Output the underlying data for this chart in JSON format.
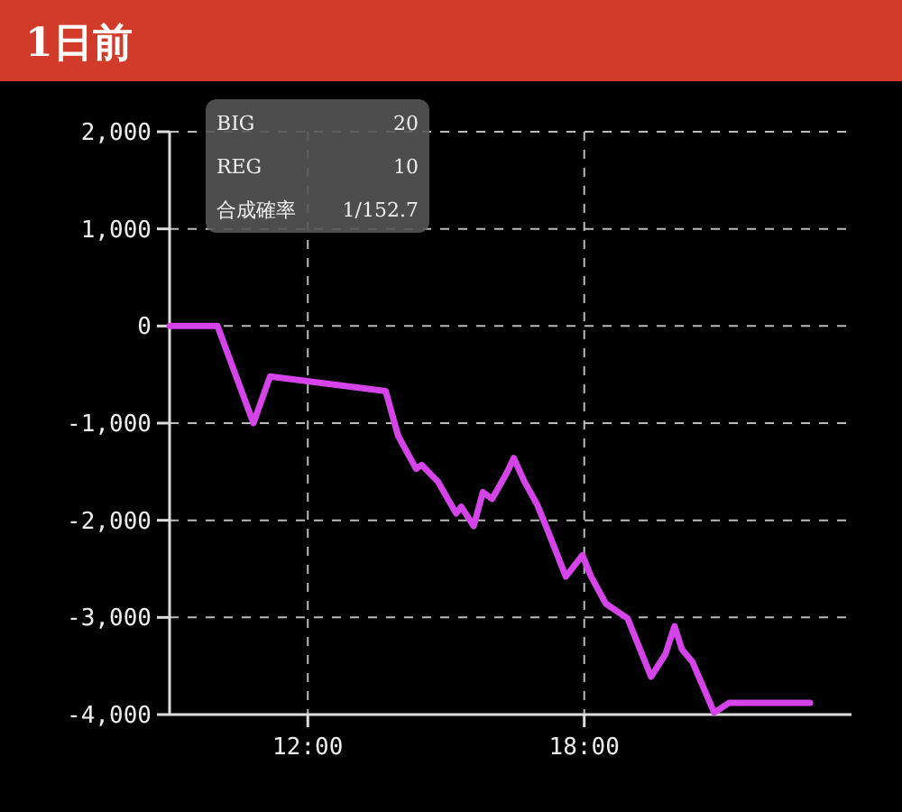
{
  "chart_data": {
    "type": "line",
    "title": "1日前",
    "annotations": [
      "BIG",
      "20",
      "REG",
      "10",
      "合成確率",
      "1/152.7"
    ],
    "x": [
      9.0,
      10.04,
      10.82,
      11.18,
      13.69,
      13.96,
      14.35,
      14.47,
      14.82,
      15.22,
      15.33,
      15.6,
      15.8,
      16.0,
      16.31,
      16.47,
      16.7,
      16.98,
      17.22,
      17.6,
      17.96,
      18.15,
      18.47,
      18.94,
      19.45,
      19.76,
      19.96,
      20.12,
      20.35,
      20.82,
      21.14,
      22.9
    ],
    "series": [
      {
        "color": "#d444e8",
        "values": [
          0,
          0,
          -1000,
          -520,
          -670,
          -1130,
          -1470,
          -1430,
          -1600,
          -1930,
          -1860,
          -2060,
          -1710,
          -1780,
          -1520,
          -1360,
          -1600,
          -1840,
          -2120,
          -2580,
          -2360,
          -2580,
          -2860,
          -3010,
          -3610,
          -3380,
          -3090,
          -3330,
          -3460,
          -3980,
          -3880,
          -3880
        ]
      }
    ],
    "xlim": [
      9,
      23.8
    ],
    "xticks": [
      {
        "value": 12,
        "label": "12:00"
      },
      {
        "value": 18,
        "label": "18:00"
      }
    ],
    "ylim": [
      -4000,
      2000
    ],
    "yticks": [
      {
        "value": -4000,
        "label": "-4,000"
      },
      {
        "value": -3000,
        "label": "-3,000"
      },
      {
        "value": -2000,
        "label": "-2,000"
      },
      {
        "value": -1000,
        "label": "-1,000"
      },
      0,
      {
        "value": 1000,
        "label": "1,000"
      },
      {
        "value": 2000,
        "label": "2,000"
      }
    ],
    "grid": true,
    "line_style": "solid",
    "marker": "none"
  }
}
